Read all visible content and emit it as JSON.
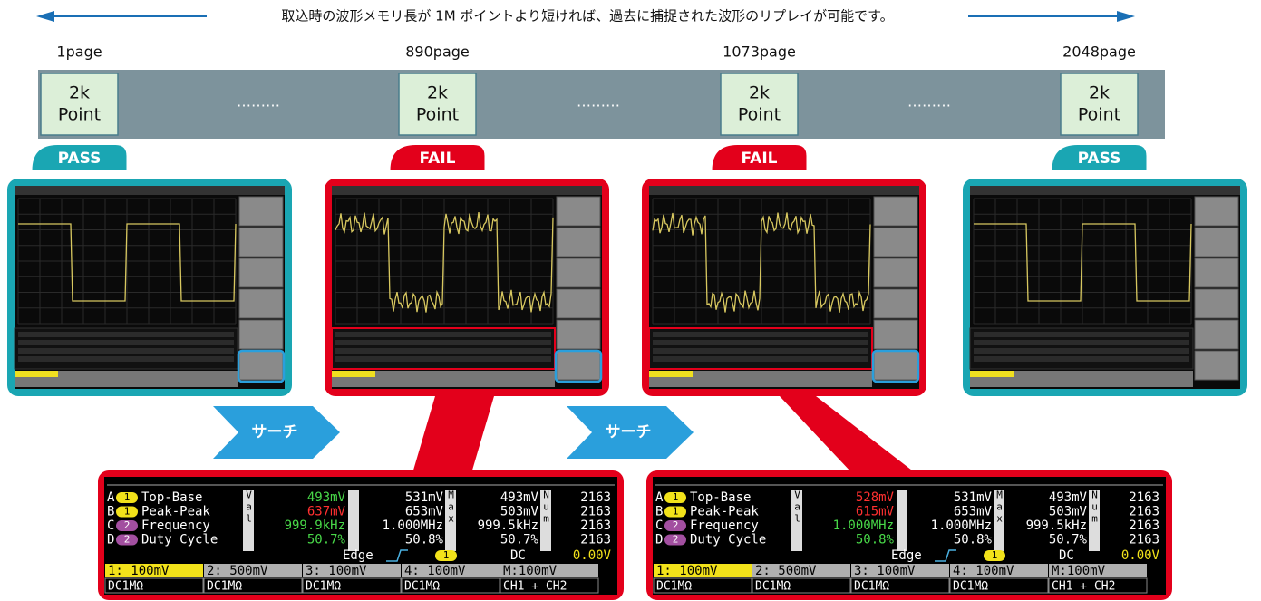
{
  "header": {
    "text": "取込時の波形メモリ長が 1M ポイントより短ければ、過去に捕捉された波形のリプレイが可能です。"
  },
  "pages": [
    {
      "label": "1page",
      "box": [
        "2k",
        "Point"
      ],
      "status": "PASS"
    },
    {
      "label": "890page",
      "box": [
        "2k",
        "Point"
      ],
      "status": "FAIL"
    },
    {
      "label": "1073page",
      "box": [
        "2k",
        "Point"
      ],
      "status": "FAIL"
    },
    {
      "label": "2048page",
      "box": [
        "2k",
        "Point"
      ],
      "status": "PASS"
    }
  ],
  "ellipsis": "………",
  "search_label": "サーチ",
  "measure_headers": [
    "Val",
    "Max",
    "Num"
  ],
  "panels": [
    {
      "rows": [
        {
          "letter": "A",
          "ch": "1",
          "name": "Top-Base",
          "value": "493mV",
          "value_color": "#48d848",
          "max": "531mV",
          "min": "493mV",
          "num": "2163"
        },
        {
          "letter": "B",
          "ch": "1",
          "name": "Peak-Peak",
          "value": "637mV",
          "value_color": "#ff3030",
          "max": "653mV",
          "min": "503mV",
          "num": "2163"
        },
        {
          "letter": "C",
          "ch": "2",
          "name": "Frequency",
          "value": "999.9kHz",
          "value_color": "#48d848",
          "max": "1.000MHz",
          "min": "999.5kHz",
          "num": "2163"
        },
        {
          "letter": "D",
          "ch": "2",
          "name": "Duty Cycle",
          "value": "50.7%",
          "value_color": "#48d848",
          "max": "50.8%",
          "min": "50.7%",
          "num": "2163"
        }
      ],
      "trigger": {
        "type": "Edge",
        "source": "1",
        "coupling": "DC",
        "level": "0.00V"
      },
      "channels": [
        "1: 100mV",
        "2: 500mV",
        "3: 100mV",
        "4: 100mV",
        "M:100mV"
      ],
      "coupling": [
        "DC1MΩ",
        "DC1MΩ",
        "DC1MΩ",
        "DC1MΩ",
        "CH1 + CH2"
      ]
    },
    {
      "rows": [
        {
          "letter": "A",
          "ch": "1",
          "name": "Top-Base",
          "value": "528mV",
          "value_color": "#ff3030",
          "max": "531mV",
          "min": "493mV",
          "num": "2163"
        },
        {
          "letter": "B",
          "ch": "1",
          "name": "Peak-Peak",
          "value": "615mV",
          "value_color": "#ff3030",
          "max": "653mV",
          "min": "503mV",
          "num": "2163"
        },
        {
          "letter": "C",
          "ch": "2",
          "name": "Frequency",
          "value": "1.000MHz",
          "value_color": "#48d848",
          "max": "1.000MHz",
          "min": "999.5kHz",
          "num": "2163"
        },
        {
          "letter": "D",
          "ch": "2",
          "name": "Duty Cycle",
          "value": "50.8%",
          "value_color": "#48d848",
          "max": "50.8%",
          "min": "50.7%",
          "num": "2163"
        }
      ],
      "trigger": {
        "type": "Edge",
        "source": "1",
        "coupling": "DC",
        "level": "0.00V"
      },
      "channels": [
        "1: 100mV",
        "2: 500mV",
        "3: 100mV",
        "4: 100mV",
        "M:100mV"
      ],
      "coupling": [
        "DC1MΩ",
        "DC1MΩ",
        "DC1MΩ",
        "DC1MΩ",
        "CH1 + CH2"
      ]
    }
  ]
}
